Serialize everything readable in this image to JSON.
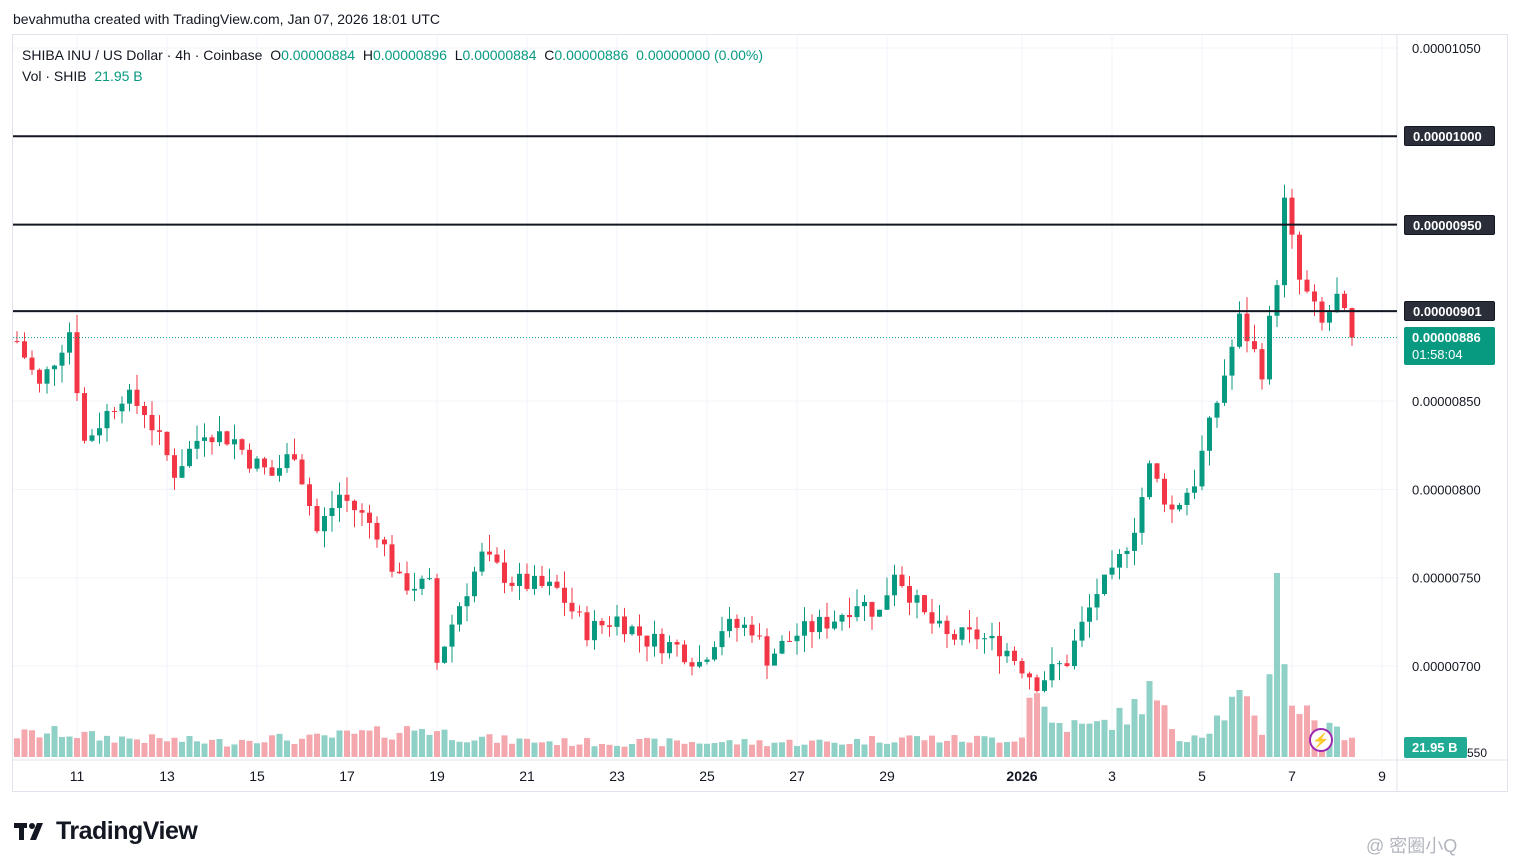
{
  "header": {
    "caption": "bevahmutha created with TradingView.com, Jan 07, 2026 18:01 UTC"
  },
  "legend": {
    "symbol": "SHIBA INU / US Dollar · 4h · Coinbase",
    "open_label": "O",
    "open": "0.00000884",
    "high_label": "H",
    "high": "0.00000896",
    "low_label": "L",
    "low": "0.00000884",
    "close_label": "C",
    "close": "0.00000886",
    "change": "0.00000000 (0.00%)",
    "vol_label": "Vol · SHIB",
    "vol_value": "21.95 B"
  },
  "price_tags": {
    "level_1000": "0.00001000",
    "level_950": "0.00000950",
    "level_901": "0.00000901",
    "last_price": "0.00000886",
    "countdown": "01:58:04",
    "volume": "21.95 B",
    "volume_tail": "550"
  },
  "footer": {
    "brand": "TradingView",
    "watermark": "@ 密圈小Q"
  },
  "colors": {
    "up": "#089981",
    "down": "#f23645",
    "up_vol": "#8fd1c6",
    "down_vol": "#f5a7ae",
    "hline": "#131722",
    "grid": "#f0f3fa"
  },
  "chart_data": {
    "type": "candlestick",
    "title": "SHIBA INU / US Dollar · 4h · Coinbase",
    "timeframe": "4h",
    "y_axis_ticks": [
      "0.00001050",
      "0.00000850",
      "0.00000800",
      "0.00000750",
      "0.00000700"
    ],
    "ylim": [
      6.48e-06,
      1.068e-05
    ],
    "x_axis_ticks": [
      "11",
      "13",
      "15",
      "17",
      "19",
      "21",
      "23",
      "25",
      "27",
      "29",
      "2026",
      "3",
      "5",
      "7",
      "9"
    ],
    "x_tick_dates": [
      "2025-12-11",
      "2025-12-13",
      "2025-12-15",
      "2025-12-17",
      "2025-12-19",
      "2025-12-21",
      "2025-12-23",
      "2025-12-25",
      "2025-12-27",
      "2025-12-29",
      "2026-01-01",
      "2026-01-03",
      "2026-01-05",
      "2026-01-07",
      "2026-01-09"
    ],
    "horizontal_lines": [
      1e-05,
      9.5e-06,
      9.01e-06
    ],
    "last_price": 8.86e-06,
    "close_path": [
      [
        "2025-12-09 16:00",
        8.84e-06
      ],
      [
        "2025-12-10 04:00",
        8.58e-06
      ],
      [
        "2025-12-10 20:00",
        8.9e-06
      ],
      [
        "2025-12-11 04:00",
        8.27e-06
      ],
      [
        "2025-12-12 00:00",
        8.54e-06
      ],
      [
        "2025-12-12 12:00",
        8.45e-06
      ],
      [
        "2025-12-13 04:00",
        8.1e-06
      ],
      [
        "2025-12-13 20:00",
        8.34e-06
      ],
      [
        "2025-12-14 12:00",
        8.28e-06
      ],
      [
        "2025-12-14 20:00",
        8.17e-06
      ],
      [
        "2025-12-15 08:00",
        8.08e-06
      ],
      [
        "2025-12-15 20:00",
        8.22e-06
      ],
      [
        "2025-12-16 08:00",
        7.76e-06
      ],
      [
        "2025-12-16 20:00",
        7.97e-06
      ],
      [
        "2025-12-17 16:00",
        7.77e-06
      ],
      [
        "2025-12-18 04:00",
        7.47e-06
      ],
      [
        "2025-12-18 20:00",
        7.45e-06
      ],
      [
        "2025-12-19 00:00",
        7.02e-06
      ],
      [
        "2025-12-19 12:00",
        7.35e-06
      ],
      [
        "2025-12-20 00:00",
        7.62e-06
      ],
      [
        "2025-12-20 16:00",
        7.48e-06
      ],
      [
        "2025-12-21 16:00",
        7.43e-06
      ],
      [
        "2025-12-22 08:00",
        7.2e-06
      ],
      [
        "2025-12-23 00:00",
        7.27e-06
      ],
      [
        "2025-12-23 16:00",
        7.15e-06
      ],
      [
        "2025-12-24 08:00",
        7.11e-06
      ],
      [
        "2025-12-24 20:00",
        7.02e-06
      ],
      [
        "2025-12-25 08:00",
        7.22e-06
      ],
      [
        "2025-12-26 00:00",
        7.22e-06
      ],
      [
        "2025-12-26 08:00",
        7.05e-06
      ],
      [
        "2025-12-27 00:00",
        7.18e-06
      ],
      [
        "2025-12-27 20:00",
        7.27e-06
      ],
      [
        "2025-12-28 08:00",
        7.37e-06
      ],
      [
        "2025-12-28 20:00",
        7.3e-06
      ],
      [
        "2025-12-29 04:00",
        7.55e-06
      ],
      [
        "2025-12-29 20:00",
        7.28e-06
      ],
      [
        "2025-12-30 08:00",
        7.16e-06
      ],
      [
        "2025-12-31 00:00",
        7.17e-06
      ],
      [
        "2025-12-31 16:00",
        7.09e-06
      ],
      [
        "2026-01-01 08:00",
        6.91e-06
      ],
      [
        "2026-01-02 00:00",
        7.03e-06
      ],
      [
        "2026-01-02 16:00",
        7.42e-06
      ],
      [
        "2026-01-03 00:00",
        7.5e-06
      ],
      [
        "2026-01-03 12:00",
        7.8e-06
      ],
      [
        "2026-01-03 20:00",
        8.12e-06
      ],
      [
        "2026-01-04 08:00",
        7.88e-06
      ],
      [
        "2026-01-04 20:00",
        8.05e-06
      ],
      [
        "2026-01-05 08:00",
        8.5e-06
      ],
      [
        "2026-01-05 20:00",
        8.96e-06
      ],
      [
        "2026-01-06 08:00",
        8.68e-06
      ],
      [
        "2026-01-06 16:00",
        9.2e-06
      ],
      [
        "2026-01-06 20:00",
        9.62e-06
      ],
      [
        "2026-01-07 04:00",
        9.18e-06
      ],
      [
        "2026-01-07 16:00",
        8.93e-06
      ],
      [
        "2026-01-08 00:00",
        9.08e-06
      ],
      [
        "2026-01-08 08:00",
        8.86e-06
      ]
    ],
    "volume_path": [
      [
        "2025-12-09 16:00",
        9
      ],
      [
        "2025-12-10 16:00",
        10
      ],
      [
        "2025-12-11 12:00",
        8
      ],
      [
        "2025-12-13 00:00",
        7
      ],
      [
        "2025-12-14 08:00",
        6
      ],
      [
        "2025-12-15 00:00",
        8
      ],
      [
        "2025-12-16 00:00",
        7
      ],
      [
        "2025-12-17 00:00",
        9
      ],
      [
        "2025-12-18 00:00",
        10
      ],
      [
        "2025-12-18 16:00",
        12
      ],
      [
        "2025-12-19 08:00",
        9
      ],
      [
        "2025-12-20 08:00",
        7
      ],
      [
        "2025-12-22 00:00",
        6
      ],
      [
        "2025-12-24 00:00",
        6
      ],
      [
        "2025-12-26 00:00",
        6
      ],
      [
        "2025-12-28 00:00",
        6
      ],
      [
        "2025-12-29 08:00",
        8
      ],
      [
        "2025-12-30 16:00",
        7
      ],
      [
        "2026-01-01 00:00",
        8
      ],
      [
        "2026-01-01 04:00",
        30
      ],
      [
        "2026-01-01 16:00",
        14
      ],
      [
        "2026-01-02 12:00",
        12
      ],
      [
        "2026-01-03 08:00",
        17
      ],
      [
        "2026-01-03 20:00",
        26
      ],
      [
        "2026-01-04 12:00",
        8
      ],
      [
        "2026-01-05 00:00",
        10
      ],
      [
        "2026-01-05 20:00",
        24
      ],
      [
        "2026-01-06 08:00",
        10
      ],
      [
        "2026-01-06 16:00",
        75
      ],
      [
        "2026-01-07 00:00",
        22
      ],
      [
        "2026-01-07 08:00",
        18
      ],
      [
        "2026-01-07 20:00",
        11
      ],
      [
        "2026-01-08 08:00",
        9
      ]
    ]
  }
}
